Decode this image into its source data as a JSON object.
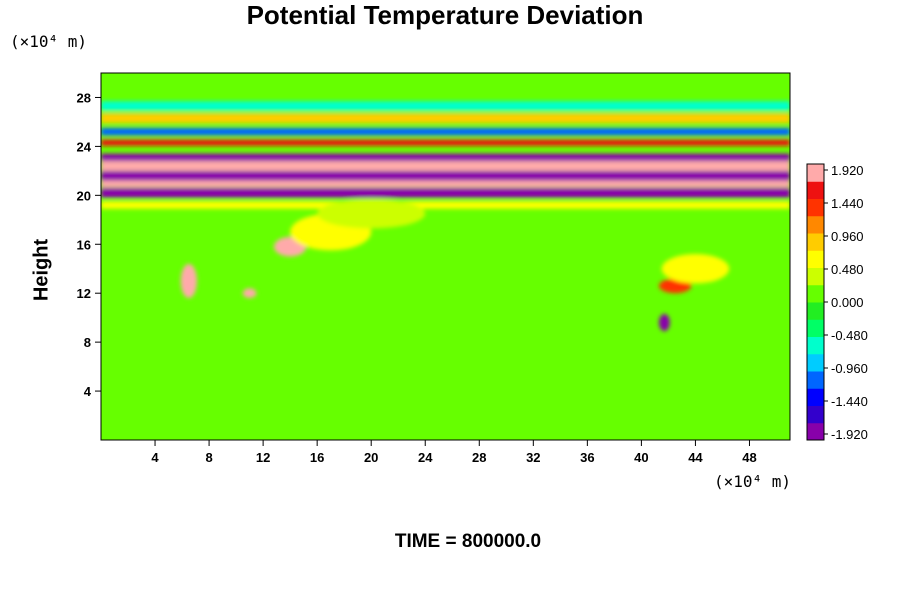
{
  "title": "Potential Temperature Deviation",
  "y_unit": "(×10⁴ m)",
  "x_unit": "(×10⁴ m)",
  "time_text": "TIME = 800000.0",
  "chart_data": {
    "type": "heatmap",
    "title": "Potential Temperature Deviation",
    "xlabel": "",
    "ylabel": "Height",
    "x_unit": "(×10⁴ m)",
    "y_unit": "(×10⁴ m)",
    "xlim": [
      0,
      51
    ],
    "ylim": [
      0,
      30
    ],
    "x_ticks": [
      4,
      8,
      12,
      16,
      20,
      24,
      28,
      32,
      36,
      40,
      44,
      48
    ],
    "y_ticks": [
      4,
      8,
      12,
      16,
      20,
      24,
      28
    ],
    "grid": false,
    "colorbar": {
      "placement": "right",
      "min": -1.92,
      "max": 1.92,
      "tick_labels": [
        "1.920",
        "1.440",
        "0.960",
        "0.480",
        "0.000",
        "-0.480",
        "-0.960",
        "-1.440",
        "-1.920"
      ],
      "colors": [
        "#8800aa",
        "#3300cc",
        "#0000ff",
        "#0066ff",
        "#00ccff",
        "#00ffcc",
        "#00ff66",
        "#22ee22",
        "#66ff00",
        "#ccff00",
        "#ffff00",
        "#ffcc00",
        "#ff8800",
        "#ff3300",
        "#ee1111",
        "#ffaaaa"
      ]
    },
    "background_value": 0.0,
    "features": [
      {
        "kind": "band",
        "y_center": 20.2,
        "thickness": 0.8,
        "value": -1.9
      },
      {
        "kind": "band",
        "y_center": 21.0,
        "thickness": 0.7,
        "value": 1.9
      },
      {
        "kind": "band",
        "y_center": 21.6,
        "thickness": 0.8,
        "value": -1.9
      },
      {
        "kind": "band",
        "y_center": 22.4,
        "thickness": 0.8,
        "value": 1.9
      },
      {
        "kind": "band",
        "y_center": 23.1,
        "thickness": 0.6,
        "value": -1.9
      },
      {
        "kind": "band",
        "y_center": 24.3,
        "thickness": 0.5,
        "value": 1.5
      },
      {
        "kind": "band",
        "y_center": 25.2,
        "thickness": 0.6,
        "value": -1.2
      },
      {
        "kind": "band",
        "y_center": 26.3,
        "thickness": 0.8,
        "value": 0.8
      },
      {
        "kind": "band",
        "y_center": 27.3,
        "thickness": 0.8,
        "value": -0.6
      },
      {
        "kind": "band",
        "y_center": 19.2,
        "thickness": 0.6,
        "value": 0.7
      },
      {
        "kind": "blob",
        "x": 6.5,
        "y": 13.0,
        "rx": 0.6,
        "ry": 1.4,
        "value": 1.7
      },
      {
        "kind": "blob",
        "x": 11.0,
        "y": 12.0,
        "rx": 0.5,
        "ry": 0.4,
        "value": 1.7
      },
      {
        "kind": "blob",
        "x": 14.0,
        "y": 15.8,
        "rx": 1.2,
        "ry": 0.8,
        "value": 1.8
      },
      {
        "kind": "blob",
        "x": 42.5,
        "y": 12.6,
        "rx": 1.2,
        "ry": 0.6,
        "value": 1.2
      },
      {
        "kind": "blob",
        "x": 41.7,
        "y": 9.6,
        "rx": 0.4,
        "ry": 0.7,
        "value": -1.7
      },
      {
        "kind": "blob",
        "x": 17.0,
        "y": 17.0,
        "rx": 3.0,
        "ry": 1.5,
        "value": 0.5
      },
      {
        "kind": "blob",
        "x": 20.0,
        "y": 18.5,
        "rx": 4.0,
        "ry": 1.2,
        "value": 0.4
      },
      {
        "kind": "blob",
        "x": 44.0,
        "y": 14.0,
        "rx": 2.5,
        "ry": 1.2,
        "value": 0.5
      }
    ]
  }
}
